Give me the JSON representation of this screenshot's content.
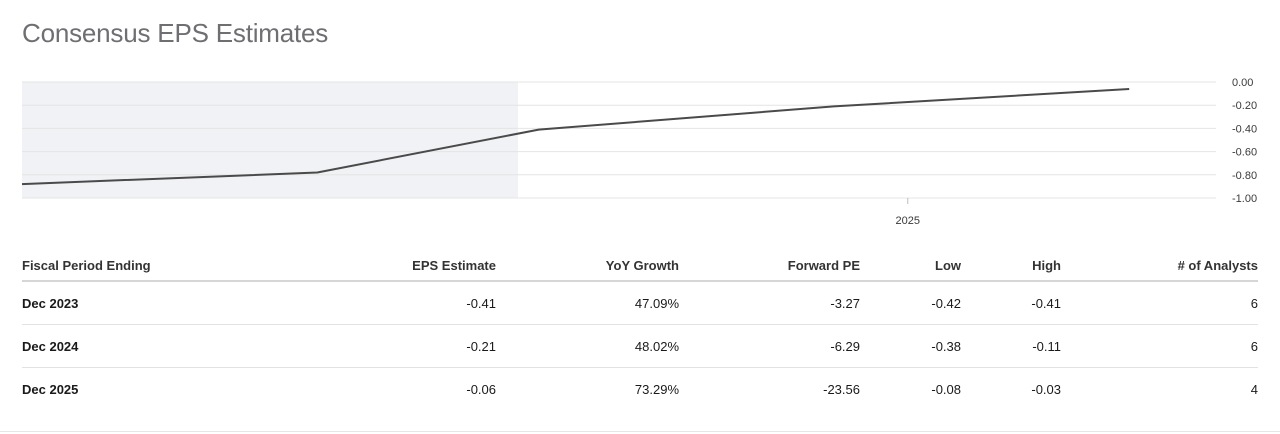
{
  "title": "Consensus EPS Estimates",
  "chart_data": {
    "type": "line",
    "x": [
      2022.0,
      2023.0,
      2023.75,
      2024.75,
      2025.75
    ],
    "series": [
      {
        "values": [
          -0.88,
          -0.78,
          -0.41,
          -0.21,
          -0.06
        ]
      }
    ],
    "actual_until": 2023.68,
    "xlim": [
      2022.0,
      2026.0
    ],
    "ylim": [
      -1.0,
      0.0
    ],
    "yticks": [
      0.0,
      -0.2,
      -0.4,
      -0.6,
      -0.8,
      -1.0
    ],
    "ytick_labels": [
      "0.00",
      "-0.20",
      "-0.40",
      "-0.60",
      "-0.80",
      "-1.00"
    ],
    "xticks": [
      2025.0
    ],
    "xtick_labels": [
      "2025"
    ],
    "grid": true,
    "colors": {
      "line": "#4a4a4a",
      "shade": "#f1f2f5",
      "grid": "#e4e4e4"
    }
  },
  "table": {
    "headers": [
      "Fiscal Period Ending",
      "EPS Estimate",
      "YoY Growth",
      "Forward PE",
      "Low",
      "High",
      "# of Analysts"
    ],
    "rows": [
      [
        "Dec 2023",
        "-0.41",
        "47.09%",
        "-3.27",
        "-0.42",
        "-0.41",
        "6"
      ],
      [
        "Dec 2024",
        "-0.21",
        "48.02%",
        "-6.29",
        "-0.38",
        "-0.11",
        "6"
      ],
      [
        "Dec 2025",
        "-0.06",
        "73.29%",
        "-23.56",
        "-0.08",
        "-0.03",
        "4"
      ]
    ]
  }
}
